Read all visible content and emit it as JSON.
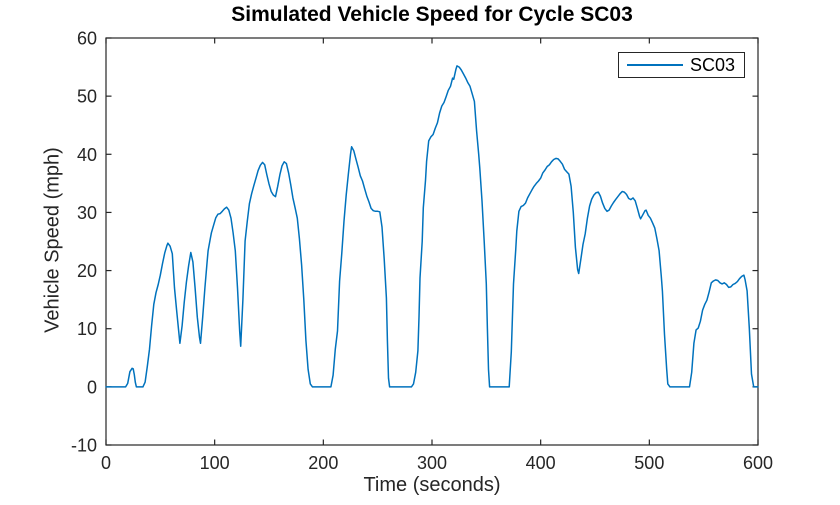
{
  "chart_data": {
    "type": "line",
    "title": "Simulated Vehicle Speed for Cycle SC03",
    "xlabel": "Time (seconds)",
    "ylabel": "Vehicle Speed (mph)",
    "xlim": [
      0,
      600
    ],
    "ylim": [
      -10,
      60
    ],
    "xticks": [
      0,
      100,
      200,
      300,
      400,
      500,
      600
    ],
    "yticks": [
      -10,
      0,
      10,
      20,
      30,
      40,
      50,
      60
    ],
    "grid": false,
    "box": true,
    "axis_color": "#262626",
    "title_color": "#000000",
    "label_color": "#262626",
    "legend": {
      "position": "northeast",
      "entries": [
        "SC03"
      ],
      "border_color": "#262626",
      "text_color": "#000000"
    },
    "series": [
      {
        "name": "SC03",
        "color": "#0072BD",
        "points": [
          [
            0,
            0
          ],
          [
            6,
            0
          ],
          [
            12,
            0
          ],
          [
            18,
            0
          ],
          [
            20,
            0.6
          ],
          [
            22,
            2.6
          ],
          [
            24,
            3.2
          ],
          [
            25,
            3.1
          ],
          [
            26,
            2.1
          ],
          [
            27,
            0.8
          ],
          [
            28,
            0
          ],
          [
            31,
            0
          ],
          [
            34,
            0
          ],
          [
            36,
            0.8
          ],
          [
            38,
            3.5
          ],
          [
            40,
            6.5
          ],
          [
            42,
            10.5
          ],
          [
            44,
            14.2
          ],
          [
            46,
            16.2
          ],
          [
            48,
            17.6
          ],
          [
            50,
            19.2
          ],
          [
            52,
            21.2
          ],
          [
            54,
            23
          ],
          [
            56,
            24.3
          ],
          [
            57,
            24.7
          ],
          [
            59,
            24.2
          ],
          [
            61,
            22.9
          ],
          [
            63,
            17
          ],
          [
            65,
            13.2
          ],
          [
            66,
            11.3
          ],
          [
            68,
            7.5
          ],
          [
            70,
            10.5
          ],
          [
            72,
            14.5
          ],
          [
            74,
            18
          ],
          [
            76,
            20.8
          ],
          [
            78,
            23.1
          ],
          [
            80,
            21.5
          ],
          [
            82,
            17
          ],
          [
            84,
            12
          ],
          [
            86,
            8.5
          ],
          [
            87,
            7.5
          ],
          [
            89,
            12
          ],
          [
            91,
            17
          ],
          [
            93,
            21.5
          ],
          [
            94,
            23.4
          ],
          [
            96,
            25.5
          ],
          [
            97,
            26.5
          ],
          [
            99,
            27.8
          ],
          [
            101,
            29.1
          ],
          [
            103,
            29.7
          ],
          [
            105,
            29.8
          ],
          [
            107,
            30.2
          ],
          [
            109,
            30.6
          ],
          [
            111,
            30.9
          ],
          [
            113,
            30.4
          ],
          [
            115,
            29
          ],
          [
            117,
            26.5
          ],
          [
            119,
            23.4
          ],
          [
            121,
            17
          ],
          [
            123,
            9.5
          ],
          [
            124,
            7
          ],
          [
            126,
            15
          ],
          [
            128,
            25.1
          ],
          [
            130,
            28.5
          ],
          [
            132,
            31.5
          ],
          [
            134,
            33.2
          ],
          [
            136,
            34.6
          ],
          [
            138,
            35.9
          ],
          [
            140,
            37.2
          ],
          [
            142,
            38.1
          ],
          [
            144,
            38.6
          ],
          [
            146,
            38.2
          ],
          [
            148,
            36.5
          ],
          [
            150,
            34.9
          ],
          [
            152,
            33.6
          ],
          [
            154,
            33
          ],
          [
            156,
            32.7
          ],
          [
            158,
            34.5
          ],
          [
            160,
            36.5
          ],
          [
            162,
            38
          ],
          [
            164,
            38.7
          ],
          [
            166,
            38.4
          ],
          [
            168,
            36.8
          ],
          [
            170,
            34.8
          ],
          [
            172,
            32.5
          ],
          [
            174,
            30.8
          ],
          [
            176,
            29
          ],
          [
            178,
            25.5
          ],
          [
            180,
            21
          ],
          [
            182,
            15
          ],
          [
            184,
            8
          ],
          [
            186,
            3
          ],
          [
            188,
            0.5
          ],
          [
            190,
            0
          ],
          [
            195,
            0
          ],
          [
            200,
            0
          ],
          [
            205,
            0
          ],
          [
            207,
            0
          ],
          [
            209,
            2
          ],
          [
            211,
            6.5
          ],
          [
            213,
            9.6
          ],
          [
            215,
            18.2
          ],
          [
            217,
            23
          ],
          [
            219,
            28.5
          ],
          [
            221,
            33
          ],
          [
            223,
            36.5
          ],
          [
            225,
            40
          ],
          [
            226,
            41.3
          ],
          [
            228,
            40.6
          ],
          [
            230,
            39.2
          ],
          [
            232,
            37.8
          ],
          [
            234,
            36.3
          ],
          [
            236,
            35.4
          ],
          [
            238,
            34.1
          ],
          [
            240,
            32.8
          ],
          [
            242,
            31.8
          ],
          [
            244,
            30.7
          ],
          [
            246,
            30.3
          ],
          [
            248,
            30.2
          ],
          [
            250,
            30.2
          ],
          [
            252,
            30.1
          ],
          [
            254,
            27.5
          ],
          [
            256,
            22
          ],
          [
            258,
            15.3
          ],
          [
            259,
            8
          ],
          [
            260,
            1.5
          ],
          [
            261,
            0
          ],
          [
            266,
            0
          ],
          [
            271,
            0
          ],
          [
            276,
            0
          ],
          [
            281,
            0
          ],
          [
            283,
            0.5
          ],
          [
            285,
            2.5
          ],
          [
            287,
            6.2
          ],
          [
            288,
            12
          ],
          [
            289,
            18.7
          ],
          [
            291,
            25
          ],
          [
            292,
            30.8
          ],
          [
            294,
            35.5
          ],
          [
            295,
            38.8
          ],
          [
            297,
            42.3
          ],
          [
            299,
            43
          ],
          [
            301,
            43.4
          ],
          [
            303,
            44.5
          ],
          [
            305,
            45.4
          ],
          [
            307,
            47.1
          ],
          [
            309,
            48.3
          ],
          [
            311,
            48.9
          ],
          [
            313,
            49.9
          ],
          [
            315,
            51
          ],
          [
            317,
            51.7
          ],
          [
            319,
            53.1
          ],
          [
            320,
            52.9
          ],
          [
            322,
            54.6
          ],
          [
            323,
            55.2
          ],
          [
            325,
            55
          ],
          [
            327,
            54.5
          ],
          [
            329,
            53.8
          ],
          [
            331,
            53.1
          ],
          [
            333,
            52.3
          ],
          [
            335,
            51.7
          ],
          [
            337,
            50.4
          ],
          [
            339,
            49.1
          ],
          [
            341,
            44
          ],
          [
            343,
            40
          ],
          [
            344,
            37.6
          ],
          [
            346,
            32
          ],
          [
            348,
            25
          ],
          [
            350,
            17.7
          ],
          [
            351,
            10
          ],
          [
            352,
            3
          ],
          [
            353,
            0
          ],
          [
            358,
            0
          ],
          [
            363,
            0
          ],
          [
            368,
            0
          ],
          [
            371,
            0
          ],
          [
            373,
            6
          ],
          [
            375,
            17.7
          ],
          [
            377,
            23.5
          ],
          [
            378,
            26.8
          ],
          [
            380,
            30.2
          ],
          [
            382,
            31
          ],
          [
            384,
            31.2
          ],
          [
            386,
            31.6
          ],
          [
            388,
            32.5
          ],
          [
            390,
            33.2
          ],
          [
            392,
            33.9
          ],
          [
            394,
            34.5
          ],
          [
            396,
            35
          ],
          [
            398,
            35.4
          ],
          [
            400,
            35.9
          ],
          [
            402,
            36.8
          ],
          [
            404,
            37.3
          ],
          [
            406,
            37.9
          ],
          [
            408,
            38.2
          ],
          [
            410,
            38.7
          ],
          [
            412,
            39.1
          ],
          [
            414,
            39.3
          ],
          [
            416,
            39.2
          ],
          [
            418,
            38.8
          ],
          [
            420,
            38.3
          ],
          [
            422,
            37.4
          ],
          [
            424,
            37
          ],
          [
            426,
            36.6
          ],
          [
            428,
            34.5
          ],
          [
            430,
            30
          ],
          [
            432,
            24
          ],
          [
            434,
            20.2
          ],
          [
            435,
            19.5
          ],
          [
            437,
            22
          ],
          [
            439,
            24.5
          ],
          [
            441,
            26.3
          ],
          [
            443,
            29
          ],
          [
            445,
            31.1
          ],
          [
            447,
            32.3
          ],
          [
            449,
            33
          ],
          [
            451,
            33.4
          ],
          [
            453,
            33.5
          ],
          [
            455,
            32.8
          ],
          [
            457,
            31.6
          ],
          [
            459,
            30.7
          ],
          [
            461,
            30.2
          ],
          [
            463,
            30.4
          ],
          [
            465,
            31.1
          ],
          [
            467,
            31.7
          ],
          [
            469,
            32.2
          ],
          [
            471,
            32.7
          ],
          [
            473,
            33.2
          ],
          [
            475,
            33.6
          ],
          [
            477,
            33.5
          ],
          [
            479,
            33.1
          ],
          [
            481,
            32.4
          ],
          [
            483,
            32.2
          ],
          [
            485,
            32.5
          ],
          [
            487,
            32
          ],
          [
            489,
            30.7
          ],
          [
            491,
            29.3
          ],
          [
            492,
            28.9
          ],
          [
            494,
            29.6
          ],
          [
            496,
            30.3
          ],
          [
            497,
            30.4
          ],
          [
            499,
            29.5
          ],
          [
            501,
            29
          ],
          [
            503,
            28.2
          ],
          [
            505,
            27.3
          ],
          [
            507,
            25.5
          ],
          [
            509,
            23.4
          ],
          [
            511,
            19
          ],
          [
            512,
            16.5
          ],
          [
            514,
            9
          ],
          [
            516,
            3
          ],
          [
            517,
            0.5
          ],
          [
            519,
            0
          ],
          [
            524,
            0
          ],
          [
            529,
            0
          ],
          [
            534,
            0
          ],
          [
            537,
            0
          ],
          [
            539,
            2.5
          ],
          [
            541,
            7.5
          ],
          [
            543,
            9.8
          ],
          [
            545,
            10.1
          ],
          [
            547,
            11.3
          ],
          [
            549,
            13.2
          ],
          [
            551,
            14.2
          ],
          [
            553,
            14.9
          ],
          [
            555,
            16.3
          ],
          [
            557,
            17.9
          ],
          [
            559,
            18.2
          ],
          [
            561,
            18.4
          ],
          [
            563,
            18.3
          ],
          [
            565,
            17.9
          ],
          [
            567,
            17.7
          ],
          [
            569,
            17.9
          ],
          [
            571,
            17.6
          ],
          [
            573,
            17.1
          ],
          [
            575,
            17.2
          ],
          [
            577,
            17.6
          ],
          [
            579,
            17.8
          ],
          [
            581,
            18.1
          ],
          [
            583,
            18.6
          ],
          [
            585,
            19
          ],
          [
            587,
            19.2
          ],
          [
            588,
            18.5
          ],
          [
            590,
            16.5
          ],
          [
            592,
            10.1
          ],
          [
            594,
            2.2
          ],
          [
            596,
            0
          ],
          [
            598,
            0
          ],
          [
            600,
            0
          ]
        ]
      }
    ]
  }
}
